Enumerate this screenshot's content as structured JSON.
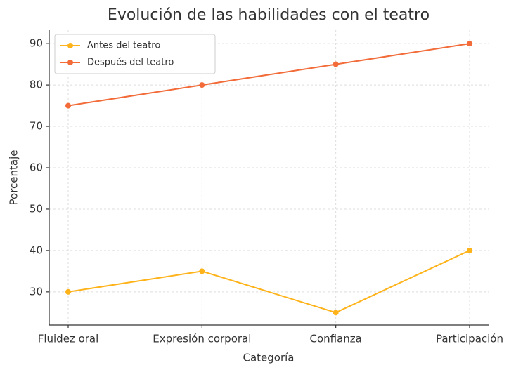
{
  "chart_data": {
    "type": "line",
    "title": "Evolución de las habilidades con el teatro",
    "x_label": "Categoría",
    "y_label": "Porcentaje",
    "categories": [
      "Fluidez oral",
      "Expresión corporal",
      "Confianza",
      "Participación"
    ],
    "series": [
      {
        "name": "Antes del teatro",
        "color": "#ffb31a",
        "values": [
          30,
          35,
          25,
          40
        ]
      },
      {
        "name": "Después del teatro",
        "color": "#f26b38",
        "values": [
          75,
          80,
          85,
          90
        ]
      }
    ],
    "ylim": [
      22,
      93.25
    ],
    "yticks": [
      30,
      40,
      50,
      60,
      70,
      80,
      90
    ],
    "grid": true,
    "legend": "upper left"
  }
}
